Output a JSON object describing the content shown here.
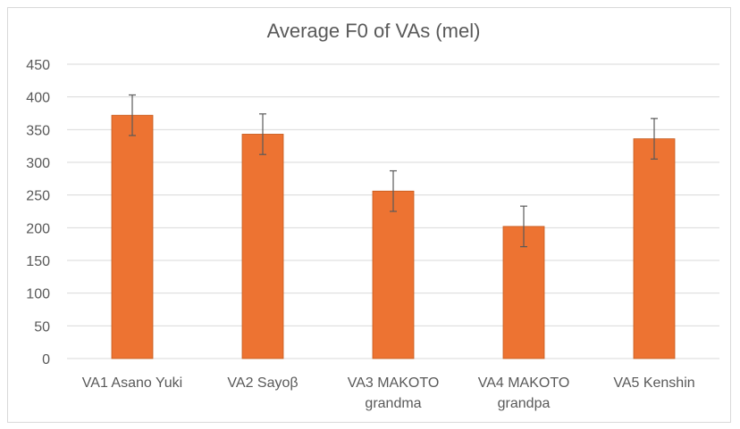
{
  "chart_data": {
    "type": "bar",
    "title": "Average F0 of VAs (mel)",
    "categories": [
      [
        "VA1 Asano Yuki"
      ],
      [
        "VA2 Sayoβ"
      ],
      [
        "VA3 MAKOTO",
        "grandma"
      ],
      [
        "VA4 MAKOTO",
        "grandpa"
      ],
      [
        "VA5 Kenshin"
      ]
    ],
    "values": [
      372,
      343,
      256,
      202,
      336
    ],
    "error": [
      31,
      31,
      31,
      31,
      31
    ],
    "ylim": [
      0,
      450
    ],
    "yticks": [
      0,
      50,
      100,
      150,
      200,
      250,
      300,
      350,
      400,
      450
    ],
    "grid": true,
    "legend": "none",
    "colors": {
      "bar": "#ed7332",
      "bar_edge": "#c55a1c",
      "grid": "#d9d9d9",
      "error": "#595959",
      "text": "#595959"
    }
  }
}
